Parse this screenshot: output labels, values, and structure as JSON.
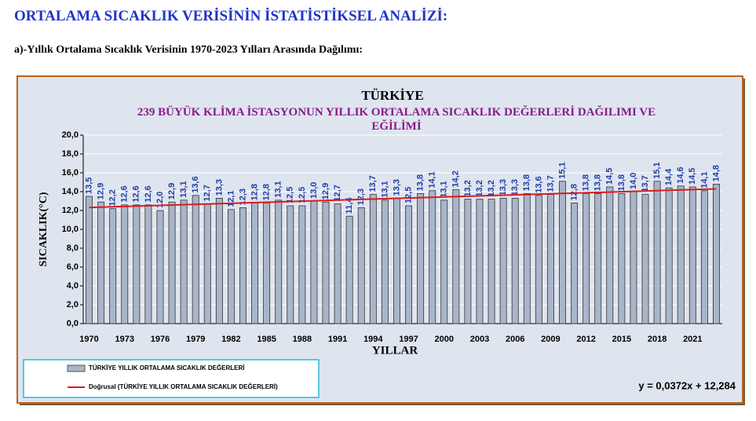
{
  "header": {
    "title": "ORTALAMA SICAKLIK VERİSİNİN İSTATİSTİKSEL ANALİZİ:",
    "subtitle": "a)-Yıllık  Ortalama Sıcaklık Verisinin 1970-2023   Yılları Arasında Dağılımı:"
  },
  "chart_data": {
    "type": "bar",
    "title": "TÜRKİYE",
    "subtitle": "239 BÜYÜK KLİMA İSTASYONUN YILLIK ORTALAMA SICAKLIK DEĞERLERİ DAĞILIMI VE EĞİLİMİ",
    "xlabel": "YILLAR",
    "ylabel": "SICAKLIK(°C)",
    "categories": [
      "1970",
      null,
      null,
      "1973",
      null,
      null,
      "1976",
      null,
      null,
      "1979",
      null,
      null,
      "1982",
      null,
      null,
      "1985",
      null,
      null,
      "1988",
      null,
      null,
      "1991",
      null,
      null,
      "1994",
      null,
      null,
      "1997",
      null,
      null,
      "2000",
      null,
      null,
      "2003",
      null,
      null,
      "2006",
      null,
      null,
      "2009",
      null,
      null,
      "2012",
      null,
      null,
      "2015",
      null,
      null,
      "2018",
      null,
      null,
      "2021",
      null,
      null
    ],
    "series": [
      {
        "name": "TÜRKİYE YILLIK ORTALAMA SICAKLIK DEĞERLERİ",
        "color": "#a9b5c9",
        "values": [
          13.5,
          12.9,
          12.2,
          12.6,
          12.6,
          12.6,
          12.0,
          12.9,
          13.1,
          13.6,
          12.7,
          13.3,
          12.1,
          12.3,
          12.8,
          12.8,
          13.1,
          12.5,
          12.5,
          13.0,
          12.9,
          12.7,
          11.4,
          12.3,
          13.7,
          13.1,
          13.3,
          12.5,
          13.8,
          14.1,
          13.1,
          14.2,
          13.2,
          13.2,
          13.2,
          13.3,
          13.3,
          13.8,
          13.6,
          13.7,
          15.1,
          12.8,
          13.8,
          13.8,
          14.5,
          13.8,
          14.0,
          13.7,
          15.1,
          14.4,
          14.6,
          14.5,
          14.1,
          14.8
        ],
        "value_labels": [
          "13,5",
          "12,9",
          "12,2",
          "12,6",
          "12,6",
          "12,6",
          "12,0",
          "12,9",
          "13,1",
          "13,6",
          "12,7",
          "13,3",
          "12,1",
          "12,3",
          "12,8",
          "12,8",
          "13,1",
          "12,5",
          "12,5",
          "13,0",
          "12,9",
          "12,7",
          "11,4",
          "12,3",
          "13,7",
          "13,1",
          "13,3",
          "12,5",
          "13,8",
          "14,1",
          "13,1",
          "14,2",
          "13,2",
          "13,2",
          "13,2",
          "13,3",
          "13,3",
          "13,8",
          "13,6",
          "13,7",
          "15,1",
          "12,8",
          "13,8",
          "13,8",
          "14,5",
          "13,8",
          "14,0",
          "13,7",
          "15,1",
          "14,4",
          "14,6",
          "14,5",
          "14,1",
          "14,8"
        ]
      }
    ],
    "trendline": {
      "name": "Doğrusal (TÜRKİYE YILLIK ORTALAMA SICAKLIK DEĞERLERİ)",
      "color": "#d91c1c",
      "slope": 0.0372,
      "intercept": 12.284,
      "label": "y = 0,0372x + 12,284"
    },
    "ylim": [
      0,
      20
    ],
    "yticks": [
      {
        "value": 0,
        "label": "0,0"
      },
      {
        "value": 2,
        "label": "2,0"
      },
      {
        "value": 4,
        "label": "4,0"
      },
      {
        "value": 6,
        "label": "6,0"
      },
      {
        "value": 8,
        "label": "8,0"
      },
      {
        "value": 10,
        "label": "10,0"
      },
      {
        "value": 12,
        "label": "12,0"
      },
      {
        "value": 14,
        "label": "14,0"
      },
      {
        "value": 16,
        "label": "16,0"
      },
      {
        "value": 18,
        "label": "18,0"
      },
      {
        "value": 20,
        "label": "20,0"
      }
    ],
    "grid": true
  }
}
